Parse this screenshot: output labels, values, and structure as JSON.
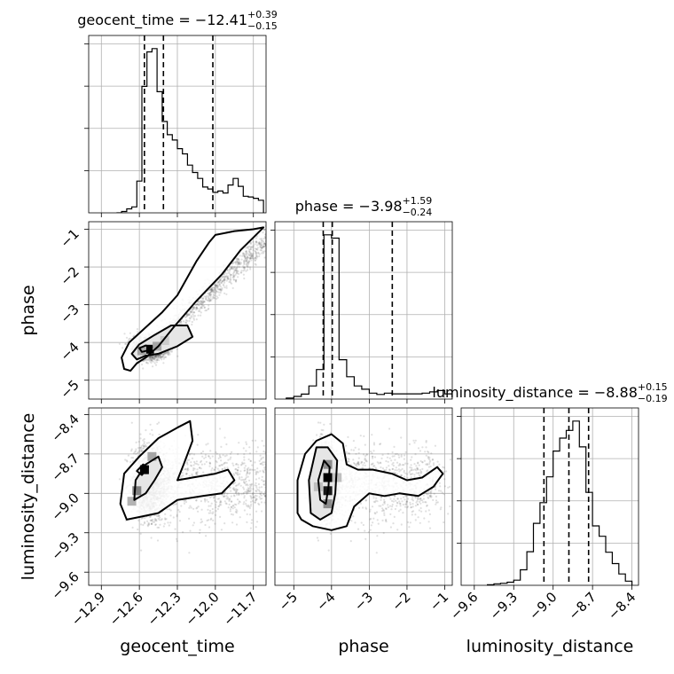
{
  "chart_data": {
    "type": "corner",
    "parameters": [
      {
        "name": "geocent_time",
        "title": {
          "lhs": "geocent_time = −12.41",
          "plus": "+0.39",
          "minus": "−0.15"
        },
        "range": [
          -13.0,
          -11.6
        ],
        "ticks": [
          -12.9,
          -12.6,
          -12.3,
          -12.0,
          -11.7
        ],
        "tick_labels": [
          "−12.9",
          "−12.6",
          "−12.3",
          "−12.0",
          "−11.7"
        ],
        "quantiles": [
          -12.56,
          -12.41,
          -12.02
        ],
        "histogram": {
          "edges": [
            -12.78,
            -12.74,
            -12.7,
            -12.66,
            -12.62,
            -12.58,
            -12.54,
            -12.5,
            -12.46,
            -12.42,
            -12.38,
            -12.34,
            -12.3,
            -12.26,
            -12.22,
            -12.18,
            -12.14,
            -12.1,
            -12.06,
            -12.02,
            -11.98,
            -11.94,
            -11.9,
            -11.86,
            -11.82,
            -11.78,
            -11.74,
            -11.7,
            -11.66,
            -11.62
          ],
          "counts": [
            0,
            2,
            6,
            9,
            48,
            191,
            243,
            248,
            183,
            138,
            118,
            110,
            97,
            89,
            72,
            61,
            52,
            39,
            36,
            31,
            33,
            30,
            42,
            52,
            40,
            25,
            24,
            22,
            19
          ]
        }
      },
      {
        "name": "phase",
        "title": {
          "lhs": "phase = −3.98",
          "plus": "+1.59",
          "minus": "−0.24"
        },
        "range": [
          -5.5,
          -0.8
        ],
        "ticks": [
          -5,
          -4,
          -3,
          -2,
          -1
        ],
        "tick_labels": [
          "−5",
          "−4",
          "−3",
          "−2",
          "−1"
        ],
        "quantiles": [
          -4.22,
          -3.98,
          -2.39
        ],
        "histogram": {
          "edges": [
            -5.2,
            -5.0,
            -4.8,
            -4.6,
            -4.4,
            -4.2,
            -4.0,
            -3.8,
            -3.6,
            -3.4,
            -3.2,
            -3.0,
            -2.8,
            -2.6,
            -2.4,
            -2.2,
            -2.0,
            -1.8,
            -1.6,
            -1.4,
            -1.2,
            -1.0,
            -0.8
          ],
          "counts": [
            3,
            8,
            15,
            40,
            90,
            500,
            490,
            120,
            68,
            40,
            30,
            18,
            14,
            18,
            16,
            16,
            16,
            16,
            18,
            22,
            26,
            16
          ]
        }
      },
      {
        "name": "luminosity_distance",
        "title": {
          "lhs": "luminosity_distance = −8.88",
          "plus": "+0.15",
          "minus": "−0.19"
        },
        "range": [
          -9.7,
          -8.35
        ],
        "ticks": [
          -9.6,
          -9.3,
          -9.0,
          -8.7,
          -8.4
        ],
        "tick_labels": [
          "−9.6",
          "−9.3",
          "−9.0",
          "−8.7",
          "−8.4"
        ],
        "quantiles": [
          -9.07,
          -8.88,
          -8.73
        ],
        "histogram": {
          "edges": [
            -9.5,
            -9.45,
            -9.4,
            -9.35,
            -9.3,
            -9.25,
            -9.2,
            -9.15,
            -9.1,
            -9.05,
            -9.0,
            -8.95,
            -8.9,
            -8.85,
            -8.8,
            -8.75,
            -8.7,
            -8.65,
            -8.6,
            -8.55,
            -8.5,
            -8.45,
            -8.4
          ],
          "counts": [
            1,
            3,
            4,
            6,
            10,
            30,
            65,
            120,
            160,
            210,
            260,
            285,
            300,
            318,
            268,
            180,
            115,
            95,
            64,
            42,
            22,
            8
          ]
        }
      }
    ],
    "pairs": [
      {
        "x": "geocent_time",
        "y": "phase"
      },
      {
        "x": "geocent_time",
        "y": "luminosity_distance"
      },
      {
        "x": "phase",
        "y": "luminosity_distance"
      }
    ],
    "grid": true
  }
}
